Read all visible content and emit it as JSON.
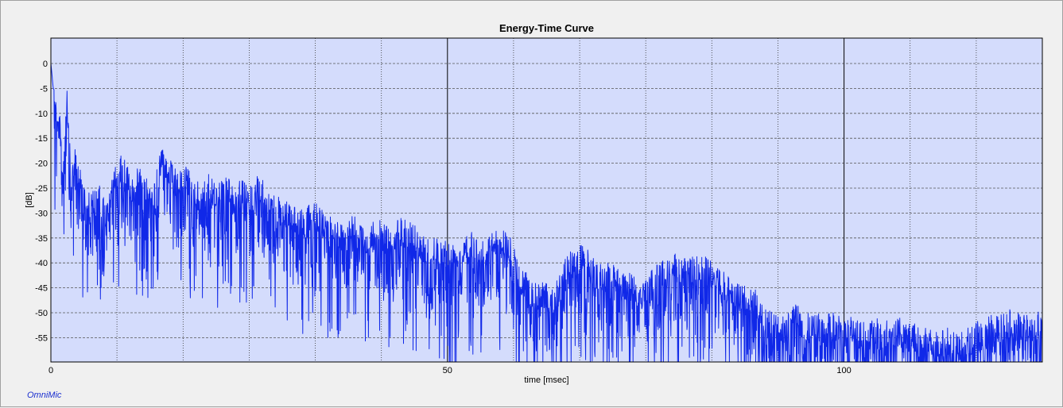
{
  "app": {
    "brand": "OmniMic"
  },
  "colors": {
    "plot_background": "#d4dcfc",
    "trace": "#1028e8",
    "grid_dashed": "#555555",
    "grid_major": "#000000",
    "window_background": "#f0f0f0"
  },
  "chart_data": {
    "type": "line",
    "title": "Energy-Time Curve",
    "xlabel": "time [msec]",
    "ylabel": "[dB]",
    "xlim": [
      0,
      125
    ],
    "ylim": [
      -60,
      5
    ],
    "x_ticks": [
      0,
      50,
      100
    ],
    "y_ticks": [
      0,
      -5,
      -10,
      -15,
      -20,
      -25,
      -30,
      -35,
      -40,
      -45,
      -50,
      -55
    ],
    "x_minor_gridlines": [
      8.33,
      16.67,
      25,
      33.33,
      41.67,
      58.33,
      66.67,
      75,
      83.33,
      91.67,
      108.33,
      116.67
    ],
    "grid": true,
    "series": [
      {
        "envelope_points": [
          [
            0,
            0
          ],
          [
            0.3,
            -5
          ],
          [
            1,
            -7
          ],
          [
            1.5,
            -20
          ],
          [
            2,
            -3
          ],
          [
            2.5,
            -20
          ],
          [
            3,
            -17
          ],
          [
            4,
            -22
          ],
          [
            5,
            -26
          ],
          [
            6,
            -24
          ],
          [
            7,
            -28
          ],
          [
            8,
            -21
          ],
          [
            9,
            -18
          ],
          [
            10,
            -22
          ],
          [
            11,
            -20
          ],
          [
            12,
            -22
          ],
          [
            13,
            -24
          ],
          [
            14,
            -16
          ],
          [
            15,
            -19
          ],
          [
            16,
            -22
          ],
          [
            17,
            -20
          ],
          [
            18,
            -23
          ],
          [
            19,
            -24
          ],
          [
            20,
            -22
          ],
          [
            21,
            -24
          ],
          [
            22,
            -21
          ],
          [
            23,
            -25
          ],
          [
            24,
            -23
          ],
          [
            25,
            -25
          ],
          [
            26,
            -22
          ],
          [
            27,
            -24
          ],
          [
            28,
            -26
          ],
          [
            29,
            -27
          ],
          [
            30,
            -28
          ],
          [
            31,
            -28
          ],
          [
            32,
            -30
          ],
          [
            33,
            -27
          ],
          [
            34,
            -29
          ],
          [
            35,
            -30
          ],
          [
            36,
            -31
          ],
          [
            37,
            -33
          ],
          [
            38,
            -29
          ],
          [
            39,
            -32
          ],
          [
            40,
            -33
          ],
          [
            41,
            -31
          ],
          [
            42,
            -32
          ],
          [
            43,
            -32
          ],
          [
            44,
            -31
          ],
          [
            45,
            -31
          ],
          [
            46,
            -32
          ],
          [
            47,
            -34
          ],
          [
            48,
            -34
          ],
          [
            49,
            -35
          ],
          [
            50,
            -35
          ],
          [
            51,
            -36
          ],
          [
            52,
            -34
          ],
          [
            53,
            -33
          ],
          [
            54,
            -35
          ],
          [
            55,
            -35
          ],
          [
            56,
            -33
          ],
          [
            57,
            -33
          ],
          [
            58,
            -35
          ],
          [
            59,
            -40
          ],
          [
            60,
            -42
          ],
          [
            61,
            -44
          ],
          [
            62,
            -43
          ],
          [
            63,
            -45
          ],
          [
            64,
            -43
          ],
          [
            65,
            -38
          ],
          [
            66,
            -37
          ],
          [
            67,
            -36
          ],
          [
            68,
            -38
          ],
          [
            69,
            -40
          ],
          [
            70,
            -40
          ],
          [
            71,
            -39
          ],
          [
            72,
            -42
          ],
          [
            73,
            -41
          ],
          [
            74,
            -43
          ],
          [
            75,
            -43
          ],
          [
            76,
            -41
          ],
          [
            77,
            -39
          ],
          [
            78,
            -38
          ],
          [
            79,
            -38
          ],
          [
            80,
            -39
          ],
          [
            81,
            -38
          ],
          [
            82,
            -38
          ],
          [
            83,
            -39
          ],
          [
            84,
            -41
          ],
          [
            85,
            -42
          ],
          [
            86,
            -43
          ],
          [
            87,
            -44
          ],
          [
            88,
            -45
          ],
          [
            89,
            -45
          ],
          [
            90,
            -49
          ],
          [
            91,
            -50
          ],
          [
            92,
            -50
          ],
          [
            93,
            -50
          ],
          [
            94,
            -48
          ],
          [
            95,
            -50
          ],
          [
            96,
            -50
          ],
          [
            97,
            -50
          ],
          [
            98,
            -50
          ],
          [
            99,
            -50
          ],
          [
            100,
            -51
          ],
          [
            101,
            -50
          ],
          [
            102,
            -51
          ],
          [
            103,
            -52
          ],
          [
            104,
            -51
          ],
          [
            105,
            -52
          ],
          [
            106,
            -51
          ],
          [
            107,
            -51
          ],
          [
            108,
            -52
          ],
          [
            109,
            -52
          ],
          [
            110,
            -53
          ],
          [
            111,
            -53
          ],
          [
            112,
            -53
          ],
          [
            113,
            -53
          ],
          [
            114,
            -54
          ],
          [
            115,
            -53
          ],
          [
            116,
            -53
          ],
          [
            117,
            -51
          ],
          [
            118,
            -51
          ],
          [
            119,
            -50
          ],
          [
            120,
            -50
          ],
          [
            121,
            -49
          ],
          [
            122,
            -50
          ],
          [
            123,
            -50
          ],
          [
            124,
            -50
          ],
          [
            125,
            -49
          ]
        ]
      }
    ]
  }
}
